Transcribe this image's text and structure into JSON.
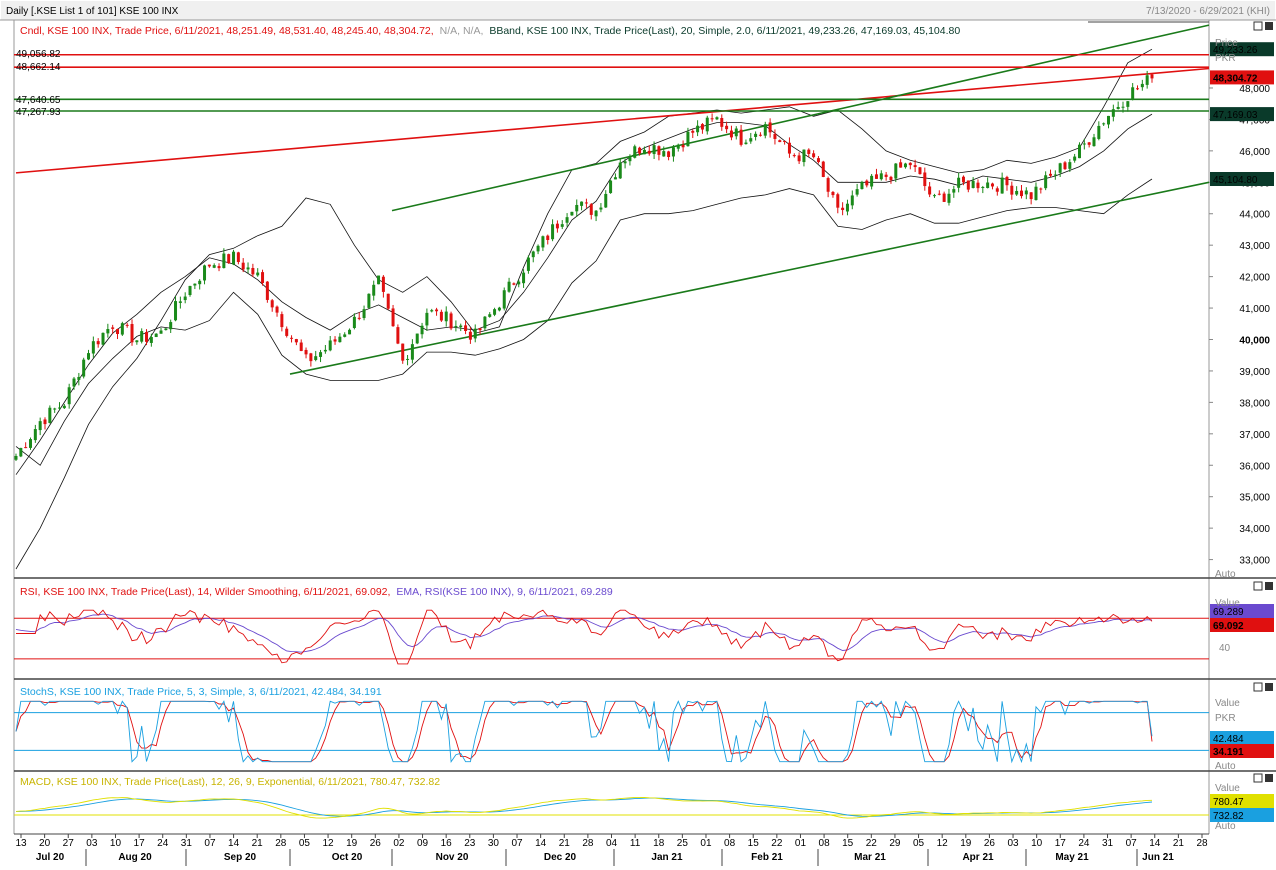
{
  "window": {
    "title": "Daily [.KSE List 1 of 101] KSE 100 INX",
    "date_range": "7/13/2020 - 6/29/2021 (KHI)"
  },
  "colors": {
    "up": "#1a8a1a",
    "down": "#e01010",
    "red_line": "#e01010",
    "green_line": "#1a7a1a",
    "cyan": "#1aa0e0",
    "yellow": "#e0e000",
    "violet": "#6a4acf",
    "badge_dark": "#0a3a2a"
  },
  "price_panel": {
    "header_cndl": "Cndl, KSE 100 INX, Trade Price, 6/11/2021, 48,251.49, 48,531.40, 48,245.40, 48,304.72,",
    "header_na": "N/A, N/A,",
    "header_bband": "BBand, KSE 100 INX, Trade Price(Last), 20, Simple, 2.0, 6/11/2021, 49,233.26, 47,169.03, 45,104.80",
    "left_levels": [
      {
        "label": "49,056.82",
        "value": 49056.82,
        "color": "red"
      },
      {
        "label": "48,662.14",
        "value": 48662.14,
        "color": "red"
      },
      {
        "label": "47,640.65",
        "value": 47640.65,
        "color": "green"
      },
      {
        "label": "47,267.93",
        "value": 47267.93,
        "color": "green"
      }
    ],
    "axis_title": "Price",
    "axis_unit": "PKR",
    "y_ticks": [
      "48,000",
      "47,000",
      "46,000",
      "45,000",
      "44,000",
      "43,000",
      "42,000",
      "41,000",
      "40,000",
      "39,000",
      "38,000",
      "37,000",
      "36,000",
      "35,000",
      "34,000",
      "33,000"
    ],
    "y_tick_values": [
      48000,
      47000,
      46000,
      45000,
      44000,
      43000,
      42000,
      41000,
      40000,
      39000,
      38000,
      37000,
      36000,
      35000,
      34000,
      33000
    ],
    "bold_tick": "40,000",
    "badges": [
      {
        "label": "49,233.26",
        "value": 49233.26,
        "style": "dark"
      },
      {
        "label": "48,304.72",
        "value": 48304.72,
        "style": "red"
      },
      {
        "label": "47,169.03",
        "value": 47169.03,
        "style": "dark"
      },
      {
        "label": "45,104.80",
        "value": 45104.8,
        "style": "dark"
      }
    ],
    "auto": "Auto"
  },
  "rsi_panel": {
    "header_rsi": "RSI, KSE 100 INX, Trade Price(Last), 14, Wilder Smoothing, 6/11/2021, 69.092,",
    "header_ema": "EMA, RSI(KSE 100 INX), 9, 6/11/2021, 69.289",
    "axis_title": "Value",
    "tick_40": "40",
    "levels": [
      70,
      30
    ],
    "badges": [
      {
        "label": "69.289",
        "style": "violet"
      },
      {
        "label": "69.092",
        "style": "red"
      }
    ]
  },
  "stoch_panel": {
    "header": "StochS, KSE 100 INX, Trade Price, 5, 3, Simple, 3, 6/11/2021, 42.484, 34.191",
    "axis_title": "Value",
    "axis_unit": "PKR",
    "levels": [
      80,
      20
    ],
    "badges": [
      {
        "label": "42.484",
        "style": "cyan"
      },
      {
        "label": "34.191",
        "style": "red"
      }
    ],
    "auto": "Auto"
  },
  "macd_panel": {
    "header": "MACD, KSE 100 INX, Trade Price(Last), 12, 26, 9, Exponential, 6/11/2021, 780.47, 732.82",
    "axis_title": "Value",
    "badges": [
      {
        "label": "780.47",
        "style": "yellow"
      },
      {
        "label": "732.82",
        "style": "cyan"
      }
    ],
    "auto": "Auto"
  },
  "x_axis": {
    "days": [
      "13",
      "20",
      "27",
      "03",
      "10",
      "17",
      "24",
      "31",
      "07",
      "14",
      "21",
      "28",
      "05",
      "12",
      "19",
      "26",
      "02",
      "09",
      "16",
      "23",
      "30",
      "07",
      "14",
      "21",
      "28",
      "04",
      "11",
      "18",
      "25",
      "01",
      "08",
      "15",
      "22",
      "01",
      "08",
      "15",
      "22",
      "29",
      "05",
      "12",
      "19",
      "26",
      "03",
      "10",
      "17",
      "24",
      "31",
      "07",
      "14",
      "21",
      "28"
    ],
    "months": [
      "Jul 20",
      "Aug 20",
      "Sep 20",
      "Oct 20",
      "Nov 20",
      "Dec 20",
      "Jan 21",
      "Feb 21",
      "Mar 21",
      "Apr 21",
      "May 21",
      "Jun 21"
    ]
  },
  "chart_data": {
    "type": "candlestick",
    "title": "Daily [.KSE List 1 of 101] KSE 100 INX",
    "x": [
      "13",
      "20",
      "27",
      "03",
      "10",
      "17",
      "24",
      "31",
      "07",
      "14",
      "21",
      "28",
      "05",
      "12",
      "19",
      "26",
      "02",
      "09",
      "16",
      "23",
      "30",
      "07",
      "14",
      "21",
      "28",
      "04",
      "11",
      "18",
      "25",
      "01",
      "08",
      "15",
      "22",
      "01",
      "08",
      "15",
      "22",
      "29",
      "05",
      "12",
      "19",
      "26",
      "03",
      "10",
      "17",
      "24",
      "31",
      "07"
    ],
    "close_weekly": [
      36300,
      37400,
      38000,
      39700,
      40500,
      40000,
      40200,
      41500,
      42400,
      42600,
      42000,
      40600,
      39300,
      39800,
      40600,
      41800,
      39300,
      40900,
      40600,
      40100,
      41200,
      42300,
      43300,
      44300,
      44100,
      45700,
      46200,
      46000,
      46600,
      47000,
      46400,
      46800,
      45900,
      45800,
      44000,
      44800,
      45200,
      45600,
      44400,
      44900,
      45000,
      44900,
      44600,
      45300,
      46000,
      47000,
      47800,
      48305
    ],
    "bb_upper_weekly": [
      32700,
      34000,
      35600,
      37300,
      38500,
      39400,
      40600,
      41900,
      42700,
      42900,
      43300,
      43600,
      44500,
      44300,
      43000,
      41900,
      41500,
      42000,
      41200,
      40200,
      40400,
      42300,
      44000,
      45400,
      45600,
      46300,
      46600,
      47100,
      47200,
      47300,
      47200,
      47300,
      47400,
      47100,
      47300,
      46700,
      46000,
      45700,
      45500,
      45300,
      45400,
      45700,
      45600,
      45800,
      46100,
      47400,
      48800,
      49233
    ],
    "bb_middle_weekly": [
      35700,
      36800,
      38000,
      39200,
      40200,
      40800,
      41500,
      42000,
      42600,
      42400,
      41900,
      41200,
      40700,
      40300,
      40800,
      41100,
      40700,
      40300,
      40400,
      40300,
      40600,
      41500,
      42600,
      43800,
      44400,
      45600,
      46100,
      46400,
      46700,
      46900,
      46900,
      46800,
      46200,
      45700,
      45000,
      45000,
      45000,
      45200,
      45100,
      44900,
      45200,
      45100,
      45000,
      45200,
      45500,
      46000,
      46700,
      47169
    ],
    "bb_lower_weekly": [
      36600,
      36000,
      37400,
      38600,
      39400,
      40100,
      40400,
      40300,
      40600,
      41500,
      40800,
      39500,
      38900,
      38700,
      38700,
      38700,
      38900,
      39600,
      39600,
      39500,
      39700,
      40000,
      40600,
      41800,
      42500,
      43800,
      44000,
      44000,
      44100,
      44300,
      44500,
      44600,
      44800,
      44600,
      43600,
      43500,
      43800,
      44000,
      43700,
      43700,
      43900,
      44100,
      44200,
      44200,
      44100,
      44000,
      44600,
      45105
    ],
    "trend_lines": [
      {
        "color": "red",
        "from": [
          "Jul 20",
          45300
        ],
        "to": [
          "Jun 21",
          48620
        ]
      },
      {
        "color": "green",
        "from": [
          "Oct 20",
          38900
        ],
        "to": [
          "Jun 21",
          45000
        ]
      },
      {
        "color": "green",
        "from": [
          "Nov 20",
          44100
        ],
        "to": [
          "Jun 21",
          50000
        ]
      }
    ],
    "horizontal_levels": [
      49056.82,
      48662.14,
      47640.65,
      47267.93
    ],
    "last": {
      "date": "6/11/2021",
      "open": 48251.49,
      "high": 48531.4,
      "low": 48245.4,
      "close": 48304.72
    },
    "rsi_last": 69.092,
    "rsi_ema_last": 69.289,
    "stoch_last": [
      42.484,
      34.191
    ],
    "macd_last": [
      780.47,
      732.82
    ],
    "ylim": [
      32600,
      49500
    ]
  }
}
